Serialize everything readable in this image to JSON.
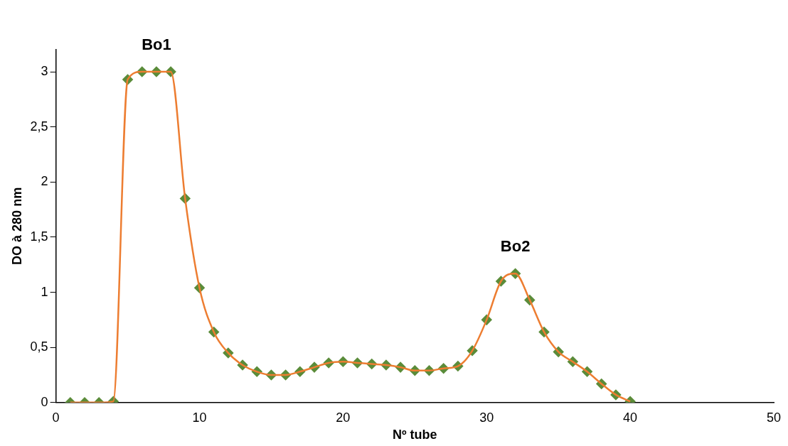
{
  "chart_data": {
    "type": "line",
    "xlabel": "Nº tube",
    "ylabel": "DO à 280 nm",
    "x": [
      1,
      2,
      3,
      4,
      5,
      6,
      7,
      8,
      9,
      10,
      11,
      12,
      13,
      14,
      15,
      16,
      17,
      18,
      19,
      20,
      21,
      22,
      23,
      24,
      25,
      26,
      27,
      28,
      29,
      30,
      31,
      32,
      33,
      34,
      35,
      36,
      37,
      38,
      39,
      40
    ],
    "series": [
      {
        "color": "#ed7d31",
        "marker": "none",
        "values": [
          0,
          0,
          0,
          0.01,
          2.93,
          3.0,
          3.0,
          3.0,
          1.85,
          1.04,
          0.64,
          0.45,
          0.34,
          0.28,
          0.25,
          0.25,
          0.28,
          0.32,
          0.36,
          0.37,
          0.36,
          0.35,
          0.34,
          0.32,
          0.29,
          0.29,
          0.31,
          0.33,
          0.47,
          0.75,
          1.1,
          1.17,
          0.93,
          0.64,
          0.46,
          0.37,
          0.28,
          0.17,
          0.07,
          0.01
        ]
      },
      {
        "type": "scatter",
        "color": "#5b8c3a",
        "values": [
          0,
          0,
          0,
          0.01,
          2.93,
          3.0,
          3.0,
          3.0,
          1.85,
          1.04,
          0.64,
          0.45,
          0.34,
          0.28,
          0.25,
          0.25,
          0.28,
          0.32,
          0.36,
          0.37,
          0.36,
          0.35,
          0.34,
          0.32,
          0.29,
          0.29,
          0.31,
          0.33,
          0.47,
          0.75,
          1.1,
          1.17,
          0.93,
          0.64,
          0.46,
          0.37,
          0.28,
          0.17,
          0.07,
          0.01
        ]
      }
    ],
    "xlim": [
      0,
      50
    ],
    "xticks": [
      0,
      10,
      20,
      30,
      40,
      50
    ],
    "ylim": [
      0,
      3.2
    ],
    "yticks": [
      0,
      {
        "value": 0.5,
        "label": "0,5"
      },
      1,
      {
        "value": 1.5,
        "label": "1,5"
      },
      2,
      {
        "value": 2.5,
        "label": "2,5"
      },
      3
    ],
    "annotations": [
      {
        "text": "Bo1",
        "x": 7,
        "y": 3.0
      },
      {
        "text": "Bo2",
        "x": 32,
        "y": 1.17
      }
    ],
    "marker": "diamond",
    "grid": false,
    "legend": false
  }
}
